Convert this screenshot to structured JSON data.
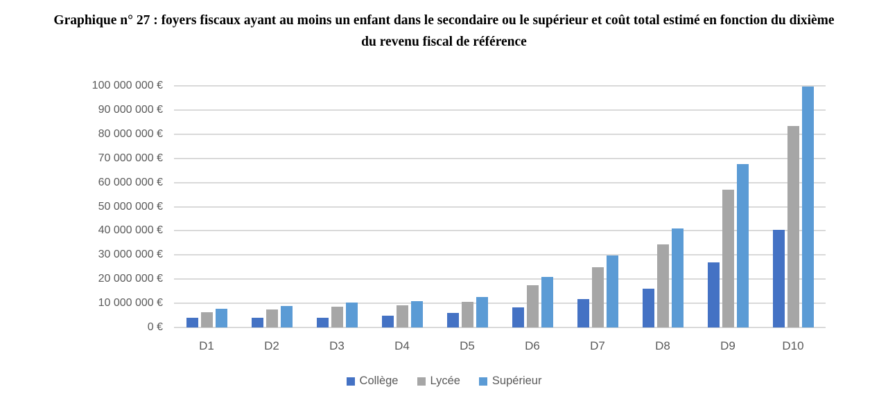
{
  "title": "Graphique n° 27 :  foyers fiscaux ayant au moins un enfant dans le secondaire ou le supérieur et coût total estimé en fonction du dixième du revenu fiscal de référence",
  "colors": {
    "college_blue": "#4472C4",
    "lycee_gray": "#A6A6A6",
    "superieur_light_blue": "#5B9BD5",
    "gridline": "#D9D9D9",
    "axis_text": "#595959",
    "title_text": "#000000"
  },
  "chart_data": {
    "type": "bar",
    "title": "Graphique n° 27 : foyers fiscaux ayant au moins un enfant dans le secondaire ou le supérieur et coût total estimé en fonction du dixième du revenu fiscal de référence",
    "xlabel": "",
    "ylabel": "",
    "grid": true,
    "legend_position": "bottom",
    "ylim": [
      0,
      100000000
    ],
    "categories": [
      "D1",
      "D2",
      "D3",
      "D4",
      "D5",
      "D6",
      "D7",
      "D8",
      "D9",
      "D10"
    ],
    "series": [
      {
        "name": "Collège",
        "color": "#4472C4",
        "values": [
          4000000,
          4100000,
          4100000,
          4800000,
          6000000,
          8300000,
          11700000,
          16000000,
          27000000,
          40500000
        ]
      },
      {
        "name": "Lycée",
        "color": "#A6A6A6",
        "values": [
          6300000,
          7400000,
          8600000,
          9100000,
          10600000,
          17500000,
          24900000,
          34300000,
          57000000,
          83500000
        ]
      },
      {
        "name": "Supérieur",
        "color": "#5B9BD5",
        "values": [
          7600000,
          9000000,
          10200000,
          11000000,
          12700000,
          21000000,
          29800000,
          41000000,
          67500000,
          99800000
        ]
      }
    ],
    "y_ticks": [
      {
        "value": 0,
        "label": "0 €"
      },
      {
        "value": 10000000,
        "label": "10 000 000 €"
      },
      {
        "value": 20000000,
        "label": "20 000 000 €"
      },
      {
        "value": 30000000,
        "label": "30 000 000 €"
      },
      {
        "value": 40000000,
        "label": "40 000 000 €"
      },
      {
        "value": 50000000,
        "label": "50 000 000 €"
      },
      {
        "value": 60000000,
        "label": "60 000 000 €"
      },
      {
        "value": 70000000,
        "label": "70 000 000 €"
      },
      {
        "value": 80000000,
        "label": "80 000 000 €"
      },
      {
        "value": 90000000,
        "label": "90 000 000 €"
      },
      {
        "value": 100000000,
        "label": "100 000 000 €"
      }
    ]
  }
}
